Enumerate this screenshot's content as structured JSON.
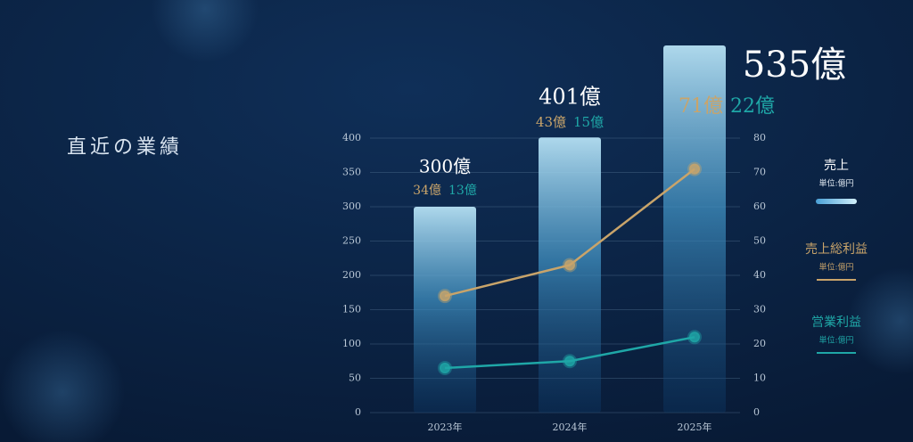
{
  "heading": "直近の業績",
  "chart_data": {
    "type": "bar-line",
    "categories": [
      "2023年",
      "2024年",
      "2025年"
    ],
    "ylim": [
      0,
      400
    ],
    "yticks": [
      0,
      50,
      100,
      150,
      200,
      250,
      300,
      350,
      400
    ],
    "y2lim": [
      0,
      80
    ],
    "y2ticks": [
      0,
      10,
      20,
      30,
      40,
      50,
      60,
      70,
      80
    ],
    "grid": true,
    "series": [
      {
        "name": "売上",
        "unit": "単位:億円",
        "type": "bar",
        "color": "#8fd2ee",
        "values": [
          300,
          401,
          535
        ],
        "value_labels": [
          "300億",
          "401億",
          "535億"
        ]
      },
      {
        "name": "売上総利益",
        "unit": "単位:億円",
        "type": "line",
        "axis": "y2",
        "color": "#c9a46a",
        "values": [
          34,
          43,
          71
        ],
        "value_labels": [
          "34億",
          "43億",
          "71億"
        ]
      },
      {
        "name": "営業利益",
        "unit": "単位:億円",
        "type": "line",
        "axis": "y2",
        "color": "#1fa7a7",
        "values": [
          13,
          15,
          22
        ],
        "value_labels": [
          "13億",
          "15億",
          "22億"
        ]
      }
    ]
  }
}
